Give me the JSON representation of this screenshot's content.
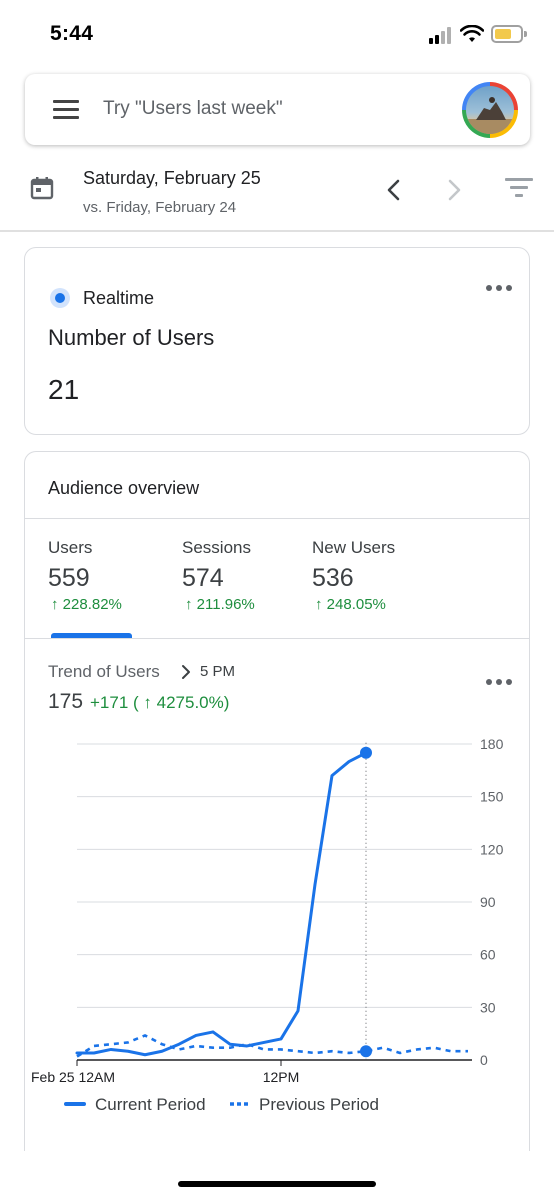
{
  "status_bar": {
    "time": "5:44"
  },
  "search": {
    "placeholder": "Try \"Users last week\""
  },
  "date_bar": {
    "date": "Saturday, February 25",
    "comparison": "vs. Friday, February 24"
  },
  "realtime_card": {
    "label": "Realtime",
    "title": "Number of Users",
    "value": "21"
  },
  "audience_overview": {
    "title": "Audience overview",
    "metrics": [
      {
        "label": "Users",
        "value": "559",
        "delta": "↑ 228.82%"
      },
      {
        "label": "Sessions",
        "value": "574",
        "delta": "↑ 211.96%"
      },
      {
        "label": "New Users",
        "value": "536",
        "delta": "↑ 248.05%"
      }
    ],
    "selected_metric": "Users",
    "trend": {
      "label": "Trend of Users",
      "time": "5 PM",
      "value": "175",
      "delta": "+171 ( ↑ 4275.0%)"
    }
  },
  "colors": {
    "accent": "#1a73e8",
    "positive": "#1e8e3e"
  },
  "chart_data": {
    "type": "line",
    "x": [
      "12AM",
      "1AM",
      "2AM",
      "3AM",
      "4AM",
      "5AM",
      "6AM",
      "7AM",
      "8AM",
      "9AM",
      "10AM",
      "11AM",
      "12PM",
      "1PM",
      "2PM",
      "3PM",
      "4PM",
      "5PM",
      "6PM",
      "7PM",
      "8PM",
      "9PM",
      "10PM",
      "11PM"
    ],
    "xticks": [
      "Feb 25 12AM",
      "12PM"
    ],
    "yticks": [
      "0",
      "30",
      "60",
      "90",
      "120",
      "150",
      "180"
    ],
    "ylim": [
      0,
      180
    ],
    "legend_position": "bottom",
    "marker": {
      "x": "5PM",
      "value": 175
    },
    "series": [
      {
        "name": "Current Period",
        "style": "solid",
        "values": [
          4,
          4,
          6,
          5,
          3,
          5,
          9,
          14,
          16,
          9,
          8,
          10,
          12,
          28,
          100,
          162,
          170,
          175,
          null,
          null,
          null,
          null,
          null,
          null
        ]
      },
      {
        "name": "Previous Period",
        "style": "dashed",
        "values": [
          2,
          8,
          9,
          10,
          14,
          9,
          6,
          8,
          7,
          7,
          9,
          6,
          6,
          5,
          4,
          5,
          4,
          5,
          7,
          4,
          6,
          7,
          5,
          5
        ]
      }
    ]
  }
}
